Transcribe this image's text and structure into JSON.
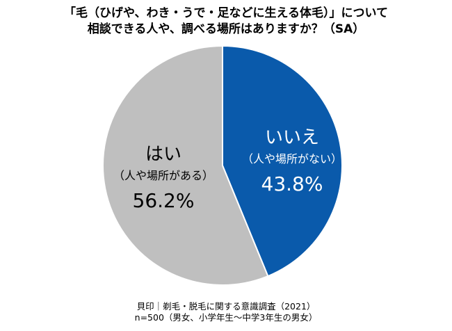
{
  "chart_data": {
    "type": "pie",
    "title": "「毛（ひげや、わき・うで・足などに生える体毛）」について",
    "subtitle": "相談できる人や、調べる場所はありますか？（SA）",
    "slices": [
      {
        "name": "いいえ",
        "note": "（人や場所がない）",
        "value": 43.8,
        "label": "43.8%",
        "color": "#0a5aab",
        "text_color": "#ffffff"
      },
      {
        "name": "はい",
        "note": "（人や場所がある）",
        "value": 56.2,
        "label": "56.2%",
        "color": "#bfbfbf",
        "text_color": "#000000"
      }
    ],
    "source": "貝印｜剃毛・脱毛に関する意識調査（2021）",
    "sample": "n=500（男女、小学年生～中学3年生の男女）"
  }
}
